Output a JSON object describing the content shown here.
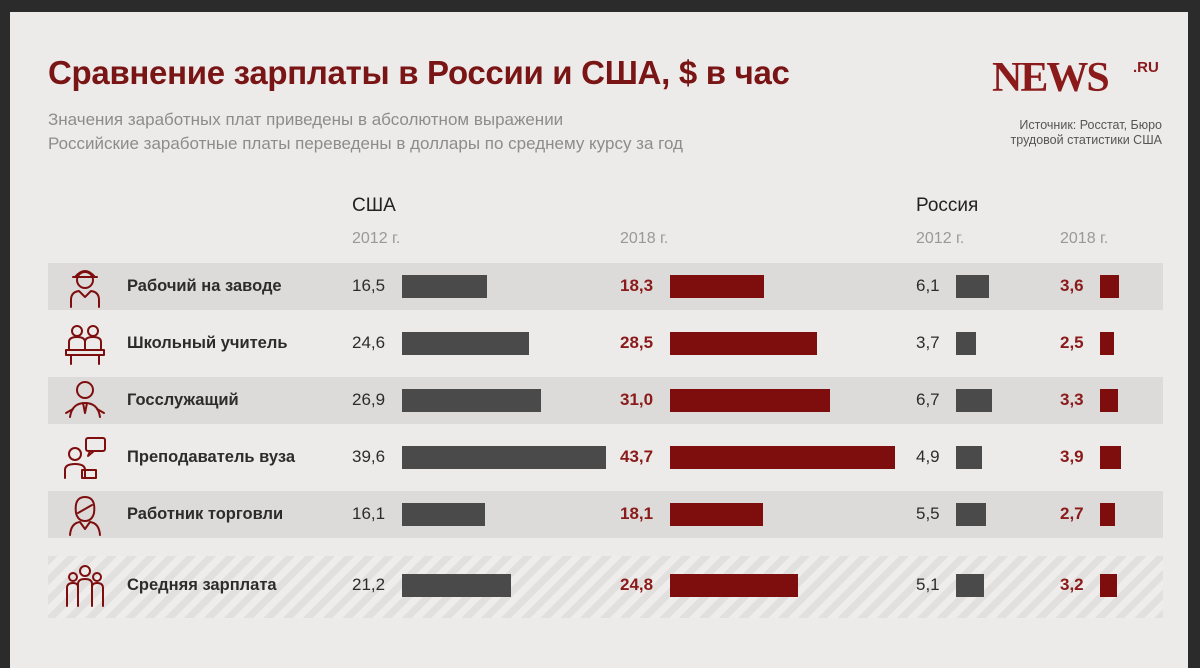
{
  "title": "Сравнение зарплаты в России и США, $ в час",
  "subtitle": [
    "Значения заработных плат приведены в абсолютном выражении",
    "Российские заработные платы переведены в доллары по среднему курсу за год"
  ],
  "logo": {
    "main": "NEWS",
    "suffix": ".RU"
  },
  "source": "Источник: Росстат, Бюро трудовой статистики США",
  "colors": {
    "title": "#7a1515",
    "bar_2012": "#4a4a4a",
    "bar_2018": "#7e0e0e",
    "row_shade": "#dcdbd9"
  },
  "chart_data": {
    "type": "bar",
    "orientation": "horizontal",
    "groups": [
      {
        "country": "США",
        "years": [
          "2012 г.",
          "2018 г."
        ]
      },
      {
        "country": "Россия",
        "years": [
          "2012 г.",
          "2018 г."
        ]
      }
    ],
    "categories": [
      {
        "label": "Рабочий на заводе",
        "icon": "worker-hardhat-icon"
      },
      {
        "label": "Школьный учитель",
        "icon": "teacher-desk-icon"
      },
      {
        "label": "Госслужащий",
        "icon": "civil-servant-icon"
      },
      {
        "label": "Преподаватель вуза",
        "icon": "lecturer-chat-icon"
      },
      {
        "label": "Работник торговли",
        "icon": "sales-worker-icon"
      },
      {
        "label": "Средняя зарплата",
        "icon": "people-group-icon"
      }
    ],
    "series": [
      {
        "name": "США 2012 г.",
        "values": [
          16.5,
          24.6,
          26.9,
          39.6,
          16.1,
          21.2
        ],
        "labels": [
          "16,5",
          "24,6",
          "26,9",
          "39,6",
          "16,1",
          "21,2"
        ]
      },
      {
        "name": "США 2018 г.",
        "values": [
          18.3,
          28.5,
          31.0,
          43.7,
          18.1,
          24.8
        ],
        "labels": [
          "18,3",
          "28,5",
          "31,0",
          "43,7",
          "18,1",
          "24,8"
        ]
      },
      {
        "name": "Россия 2012 г.",
        "values": [
          6.1,
          3.7,
          6.7,
          4.9,
          5.5,
          5.1
        ],
        "labels": [
          "6,1",
          "3,7",
          "6,7",
          "4,9",
          "5,5",
          "5,1"
        ]
      },
      {
        "name": "Россия 2018 г.",
        "values": [
          3.6,
          2.5,
          3.3,
          3.9,
          2.7,
          3.2
        ],
        "labels": [
          "3,6",
          "2,5",
          "3,3",
          "3,9",
          "2,7",
          "3,2"
        ]
      }
    ],
    "units": "$ в час"
  }
}
